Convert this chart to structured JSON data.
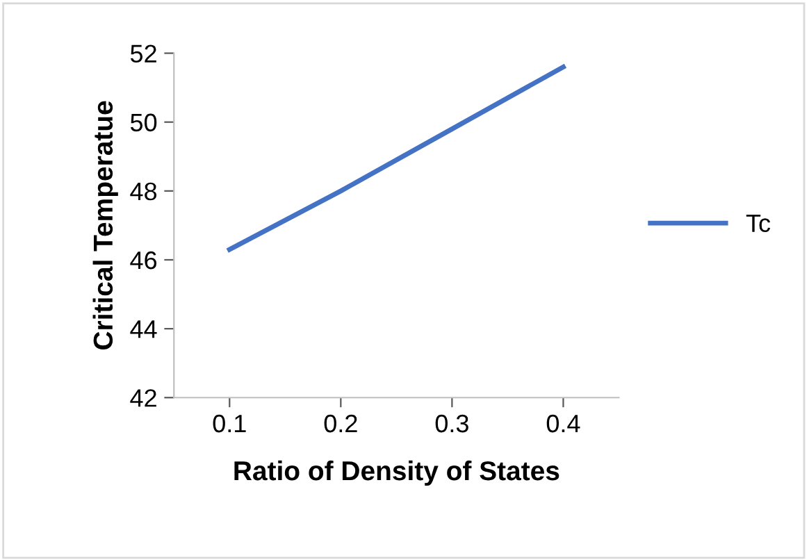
{
  "chart_data": {
    "type": "line",
    "xlabel": "Ratio of Density of States",
    "ylabel": "Critical Temperatue",
    "categories": [
      "0.1",
      "0.2",
      "0.3",
      "0.4"
    ],
    "series": [
      {
        "name": "Tc",
        "color": "#4472c4",
        "values": [
          46.3,
          48.0,
          49.8,
          51.6
        ]
      }
    ],
    "ylim": [
      42,
      52
    ],
    "yticks": [
      42,
      44,
      46,
      48,
      50,
      52
    ],
    "grid": false,
    "legend": "right",
    "marker": "none",
    "line_style": "solid"
  }
}
